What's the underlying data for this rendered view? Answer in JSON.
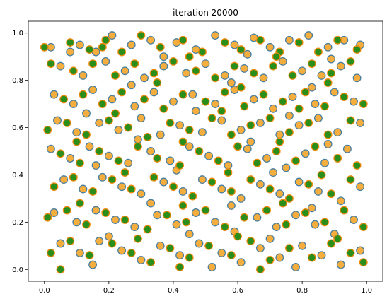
{
  "chart_data": {
    "type": "scatter",
    "title": "iteration 20000",
    "xlabel": "",
    "ylabel": "",
    "xlim": [
      -0.05,
      1.05
    ],
    "ylim": [
      -0.05,
      1.05
    ],
    "xticks": [
      "0.0",
      "0.2",
      "0.4",
      "0.6",
      "0.8",
      "1.0"
    ],
    "yticks": [
      "0.0",
      "0.2",
      "0.4",
      "0.6",
      "0.8",
      "1.0"
    ],
    "grid": false,
    "legend": "none",
    "marker_styles": {
      "orange": {
        "fill": "#f5ad3d",
        "stroke": "#4a7fa0"
      },
      "green": {
        "fill": "#2a8f1a",
        "stroke": "#ee8a10"
      }
    },
    "series": [
      {
        "marker": "orange",
        "points": [
          [
            0.02,
            0.94
          ],
          [
            0.11,
            0.95
          ],
          [
            0.16,
            0.92
          ],
          [
            0.21,
            0.99
          ],
          [
            0.27,
            0.95
          ],
          [
            0.33,
            0.97
          ],
          [
            0.41,
            0.96
          ],
          [
            0.47,
            0.93
          ],
          [
            0.53,
            0.99
          ],
          [
            0.59,
            0.95
          ],
          [
            0.65,
            0.98
          ],
          [
            0.7,
            0.94
          ],
          [
            0.76,
            0.97
          ],
          [
            0.82,
            0.99
          ],
          [
            0.88,
            0.94
          ],
          [
            0.93,
            0.97
          ],
          [
            0.98,
            0.95
          ],
          [
            0.05,
            0.86
          ],
          [
            0.12,
            0.82
          ],
          [
            0.19,
            0.88
          ],
          [
            0.25,
            0.84
          ],
          [
            0.31,
            0.81
          ],
          [
            0.37,
            0.86
          ],
          [
            0.44,
            0.83
          ],
          [
            0.5,
            0.87
          ],
          [
            0.56,
            0.82
          ],
          [
            0.62,
            0.85
          ],
          [
            0.68,
            0.81
          ],
          [
            0.74,
            0.88
          ],
          [
            0.8,
            0.84
          ],
          [
            0.86,
            0.82
          ],
          [
            0.92,
            0.86
          ],
          [
            0.97,
            0.81
          ],
          [
            0.03,
            0.74
          ],
          [
            0.09,
            0.7
          ],
          [
            0.15,
            0.76
          ],
          [
            0.21,
            0.72
          ],
          [
            0.28,
            0.69
          ],
          [
            0.34,
            0.75
          ],
          [
            0.4,
            0.71
          ],
          [
            0.46,
            0.74
          ],
          [
            0.53,
            0.7
          ],
          [
            0.59,
            0.76
          ],
          [
            0.65,
            0.72
          ],
          [
            0.71,
            0.68
          ],
          [
            0.77,
            0.73
          ],
          [
            0.84,
            0.7
          ],
          [
            0.9,
            0.75
          ],
          [
            0.96,
            0.71
          ],
          [
            0.04,
            0.63
          ],
          [
            0.1,
            0.58
          ],
          [
            0.17,
            0.62
          ],
          [
            0.23,
            0.59
          ],
          [
            0.3,
            0.64
          ],
          [
            0.36,
            0.57
          ],
          [
            0.42,
            0.61
          ],
          [
            0.49,
            0.58
          ],
          [
            0.55,
            0.63
          ],
          [
            0.61,
            0.59
          ],
          [
            0.67,
            0.62
          ],
          [
            0.73,
            0.57
          ],
          [
            0.79,
            0.61
          ],
          [
            0.85,
            0.64
          ],
          [
            0.91,
            0.58
          ],
          [
            0.98,
            0.62
          ],
          [
            0.02,
            0.51
          ],
          [
            0.08,
            0.47
          ],
          [
            0.14,
            0.52
          ],
          [
            0.2,
            0.48
          ],
          [
            0.26,
            0.45
          ],
          [
            0.33,
            0.5
          ],
          [
            0.39,
            0.46
          ],
          [
            0.45,
            0.52
          ],
          [
            0.51,
            0.48
          ],
          [
            0.57,
            0.44
          ],
          [
            0.63,
            0.51
          ],
          [
            0.69,
            0.47
          ],
          [
            0.75,
            0.43
          ],
          [
            0.81,
            0.49
          ],
          [
            0.87,
            0.45
          ],
          [
            0.94,
            0.51
          ],
          [
            0.06,
            0.38
          ],
          [
            0.12,
            0.34
          ],
          [
            0.18,
            0.39
          ],
          [
            0.24,
            0.35
          ],
          [
            0.3,
            0.32
          ],
          [
            0.37,
            0.37
          ],
          [
            0.43,
            0.33
          ],
          [
            0.49,
            0.38
          ],
          [
            0.55,
            0.34
          ],
          [
            0.61,
            0.3
          ],
          [
            0.67,
            0.36
          ],
          [
            0.73,
            0.32
          ],
          [
            0.79,
            0.37
          ],
          [
            0.85,
            0.33
          ],
          [
            0.92,
            0.29
          ],
          [
            0.98,
            0.35
          ],
          [
            0.03,
            0.24
          ],
          [
            0.1,
            0.2
          ],
          [
            0.16,
            0.25
          ],
          [
            0.22,
            0.21
          ],
          [
            0.28,
            0.18
          ],
          [
            0.35,
            0.23
          ],
          [
            0.41,
            0.19
          ],
          [
            0.47,
            0.24
          ],
          [
            0.53,
            0.2
          ],
          [
            0.59,
            0.16
          ],
          [
            0.66,
            0.22
          ],
          [
            0.72,
            0.18
          ],
          [
            0.78,
            0.23
          ],
          [
            0.84,
            0.19
          ],
          [
            0.9,
            0.15
          ],
          [
            0.96,
            0.21
          ],
          [
            0.05,
            0.11
          ],
          [
            0.11,
            0.07
          ],
          [
            0.17,
            0.12
          ],
          [
            0.24,
            0.08
          ],
          [
            0.3,
            0.04
          ],
          [
            0.36,
            0.1
          ],
          [
            0.42,
            0.06
          ],
          [
            0.48,
            0.11
          ],
          [
            0.55,
            0.07
          ],
          [
            0.61,
            0.03
          ],
          [
            0.67,
            0.09
          ],
          [
            0.73,
            0.05
          ],
          [
            0.8,
            0.1
          ],
          [
            0.86,
            0.06
          ],
          [
            0.92,
            0.02
          ],
          [
            0.98,
            0.08
          ],
          [
            0.08,
            0.92
          ],
          [
            0.37,
            0.9
          ],
          [
            0.63,
            0.91
          ],
          [
            0.89,
            0.89
          ],
          [
            0.27,
            0.78
          ],
          [
            0.58,
            0.79
          ],
          [
            0.83,
            0.77
          ],
          [
            0.13,
            0.66
          ],
          [
            0.47,
            0.67
          ],
          [
            0.76,
            0.65
          ],
          [
            0.29,
            0.55
          ],
          [
            0.64,
            0.54
          ],
          [
            0.88,
            0.53
          ],
          [
            0.16,
            0.44
          ],
          [
            0.41,
            0.42
          ],
          [
            0.71,
            0.41
          ],
          [
            0.33,
            0.28
          ],
          [
            0.58,
            0.27
          ],
          [
            0.83,
            0.26
          ],
          [
            0.2,
            0.14
          ],
          [
            0.45,
            0.15
          ],
          [
            0.7,
            0.13
          ],
          [
            0.15,
            0.02
          ],
          [
            0.52,
            0.01
          ],
          [
            0.78,
            0.01
          ]
        ]
      },
      {
        "marker": "green",
        "points": [
          [
            0.0,
            0.94
          ],
          [
            0.08,
            0.96
          ],
          [
            0.14,
            0.93
          ],
          [
            0.19,
            0.97
          ],
          [
            0.24,
            0.92
          ],
          [
            0.3,
            0.99
          ],
          [
            0.36,
            0.94
          ],
          [
            0.43,
            0.97
          ],
          [
            0.49,
            0.92
          ],
          [
            0.56,
            0.96
          ],
          [
            0.61,
            0.93
          ],
          [
            0.67,
            0.97
          ],
          [
            0.73,
            0.92
          ],
          [
            0.79,
            0.96
          ],
          [
            0.85,
            0.92
          ],
          [
            0.91,
            0.97
          ],
          [
            0.97,
            0.93
          ],
          [
            0.02,
            0.87
          ],
          [
            0.09,
            0.84
          ],
          [
            0.15,
            0.87
          ],
          [
            0.22,
            0.82
          ],
          [
            0.28,
            0.87
          ],
          [
            0.34,
            0.83
          ],
          [
            0.4,
            0.88
          ],
          [
            0.47,
            0.84
          ],
          [
            0.53,
            0.81
          ],
          [
            0.59,
            0.86
          ],
          [
            0.65,
            0.83
          ],
          [
            0.71,
            0.86
          ],
          [
            0.77,
            0.82
          ],
          [
            0.83,
            0.87
          ],
          [
            0.89,
            0.83
          ],
          [
            0.95,
            0.88
          ],
          [
            0.06,
            0.72
          ],
          [
            0.12,
            0.74
          ],
          [
            0.18,
            0.7
          ],
          [
            0.24,
            0.75
          ],
          [
            0.31,
            0.72
          ],
          [
            0.37,
            0.68
          ],
          [
            0.43,
            0.74
          ],
          [
            0.5,
            0.71
          ],
          [
            0.56,
            0.75
          ],
          [
            0.62,
            0.69
          ],
          [
            0.68,
            0.74
          ],
          [
            0.74,
            0.71
          ],
          [
            0.81,
            0.75
          ],
          [
            0.87,
            0.69
          ],
          [
            0.93,
            0.73
          ],
          [
            0.99,
            0.7
          ],
          [
            0.01,
            0.59
          ],
          [
            0.07,
            0.62
          ],
          [
            0.13,
            0.57
          ],
          [
            0.2,
            0.63
          ],
          [
            0.26,
            0.6
          ],
          [
            0.32,
            0.56
          ],
          [
            0.39,
            0.62
          ],
          [
            0.45,
            0.59
          ],
          [
            0.52,
            0.64
          ],
          [
            0.58,
            0.57
          ],
          [
            0.64,
            0.61
          ],
          [
            0.7,
            0.64
          ],
          [
            0.76,
            0.58
          ],
          [
            0.82,
            0.62
          ],
          [
            0.88,
            0.57
          ],
          [
            0.95,
            0.63
          ],
          [
            0.05,
            0.49
          ],
          [
            0.11,
            0.45
          ],
          [
            0.17,
            0.5
          ],
          [
            0.23,
            0.46
          ],
          [
            0.29,
            0.52
          ],
          [
            0.35,
            0.47
          ],
          [
            0.42,
            0.44
          ],
          [
            0.48,
            0.5
          ],
          [
            0.54,
            0.46
          ],
          [
            0.6,
            0.52
          ],
          [
            0.66,
            0.45
          ],
          [
            0.72,
            0.5
          ],
          [
            0.78,
            0.46
          ],
          [
            0.84,
            0.52
          ],
          [
            0.91,
            0.47
          ],
          [
            0.97,
            0.44
          ],
          [
            0.03,
            0.35
          ],
          [
            0.09,
            0.39
          ],
          [
            0.15,
            0.33
          ],
          [
            0.21,
            0.38
          ],
          [
            0.27,
            0.34
          ],
          [
            0.34,
            0.39
          ],
          [
            0.4,
            0.35
          ],
          [
            0.46,
            0.31
          ],
          [
            0.52,
            0.37
          ],
          [
            0.58,
            0.33
          ],
          [
            0.64,
            0.38
          ],
          [
            0.7,
            0.34
          ],
          [
            0.76,
            0.3
          ],
          [
            0.82,
            0.36
          ],
          [
            0.89,
            0.32
          ],
          [
            0.95,
            0.38
          ],
          [
            0.01,
            0.22
          ],
          [
            0.07,
            0.25
          ],
          [
            0.13,
            0.19
          ],
          [
            0.19,
            0.24
          ],
          [
            0.25,
            0.21
          ],
          [
            0.32,
            0.17
          ],
          [
            0.38,
            0.23
          ],
          [
            0.44,
            0.2
          ],
          [
            0.5,
            0.25
          ],
          [
            0.56,
            0.18
          ],
          [
            0.62,
            0.22
          ],
          [
            0.69,
            0.25
          ],
          [
            0.75,
            0.19
          ],
          [
            0.81,
            0.24
          ],
          [
            0.87,
            0.2
          ],
          [
            0.93,
            0.25
          ],
          [
            0.99,
            0.18
          ],
          [
            0.02,
            0.07
          ],
          [
            0.08,
            0.12
          ],
          [
            0.14,
            0.06
          ],
          [
            0.21,
            0.11
          ],
          [
            0.27,
            0.07
          ],
          [
            0.33,
            0.03
          ],
          [
            0.39,
            0.09
          ],
          [
            0.45,
            0.05
          ],
          [
            0.51,
            0.1
          ],
          [
            0.58,
            0.06
          ],
          [
            0.64,
            0.12
          ],
          [
            0.7,
            0.04
          ],
          [
            0.76,
            0.09
          ],
          [
            0.83,
            0.05
          ],
          [
            0.89,
            0.11
          ],
          [
            0.95,
            0.07
          ],
          [
            0.99,
            0.03
          ],
          [
            0.18,
            0.94
          ],
          [
            0.45,
            0.9
          ],
          [
            0.72,
            0.9
          ],
          [
            0.35,
            0.79
          ],
          [
            0.61,
            0.77
          ],
          [
            0.88,
            0.79
          ],
          [
            0.22,
            0.66
          ],
          [
            0.55,
            0.67
          ],
          [
            0.79,
            0.68
          ],
          [
            0.1,
            0.54
          ],
          [
            0.43,
            0.54
          ],
          [
            0.73,
            0.54
          ],
          [
            0.25,
            0.41
          ],
          [
            0.57,
            0.41
          ],
          [
            0.86,
            0.4
          ],
          [
            0.11,
            0.28
          ],
          [
            0.43,
            0.27
          ],
          [
            0.74,
            0.28
          ],
          [
            0.29,
            0.13
          ],
          [
            0.6,
            0.14
          ],
          [
            0.91,
            0.13
          ],
          [
            0.05,
            0.0
          ],
          [
            0.42,
            0.01
          ],
          [
            0.67,
            0.0
          ]
        ]
      }
    ]
  }
}
